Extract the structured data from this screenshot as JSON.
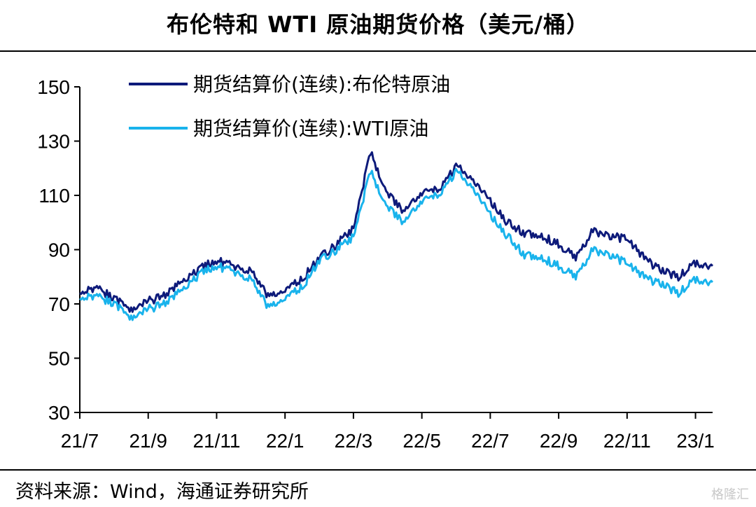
{
  "header": {
    "title": "布伦特和 WTI 原油期货价格（美元/桶）"
  },
  "footer": {
    "source": "资料来源：Wind，海通证券研究所",
    "watermark": "格隆汇"
  },
  "chart_data": {
    "type": "line",
    "title": "布伦特和 WTI 原油期货价格（美元/桶）",
    "xlabel": "",
    "ylabel": "",
    "ylim": [
      30,
      150
    ],
    "yticks": [
      30,
      50,
      70,
      90,
      110,
      130,
      150
    ],
    "xticks": [
      "21/7",
      "21/9",
      "21/11",
      "22/1",
      "22/3",
      "22/5",
      "22/7",
      "22/9",
      "22/11",
      "23/1"
    ],
    "grid": false,
    "legend_position": "top-left",
    "colors": {
      "brent": "#0d1a7a",
      "wti": "#19b3ec"
    },
    "x": [
      0,
      0.25,
      0.5,
      0.75,
      1,
      1.25,
      1.5,
      1.75,
      2,
      2.25,
      2.5,
      2.75,
      3,
      3.25,
      3.5,
      3.75,
      4,
      4.25,
      4.5,
      4.75,
      5,
      5.25,
      5.5,
      5.75,
      6,
      6.25,
      6.5,
      6.75,
      7,
      7.25,
      7.5,
      7.75,
      8,
      8.25,
      8.5,
      8.75,
      9,
      9.25
    ],
    "series": [
      {
        "name": "期货结算价(连续):布伦特原油",
        "color": "#0d1a7a",
        "values": [
          75,
          76,
          72,
          68,
          71,
          73,
          78,
          83,
          86,
          84,
          82,
          73,
          75,
          79,
          87,
          92,
          98,
          126,
          110,
          104,
          111,
          112,
          121,
          116,
          108,
          100,
          96,
          95,
          92,
          87,
          97,
          95,
          94,
          87,
          82,
          80,
          85,
          84
        ]
      },
      {
        "name": "期货结算价(连续):WTI原油",
        "color": "#19b3ec",
        "values": [
          73,
          73,
          70,
          65,
          68,
          70,
          75,
          81,
          84,
          82,
          79,
          69,
          72,
          76,
          86,
          90,
          95,
          119,
          105,
          100,
          108,
          110,
          119,
          113,
          103,
          95,
          88,
          87,
          84,
          80,
          90,
          88,
          85,
          80,
          77,
          74,
          79,
          78
        ]
      }
    ]
  }
}
